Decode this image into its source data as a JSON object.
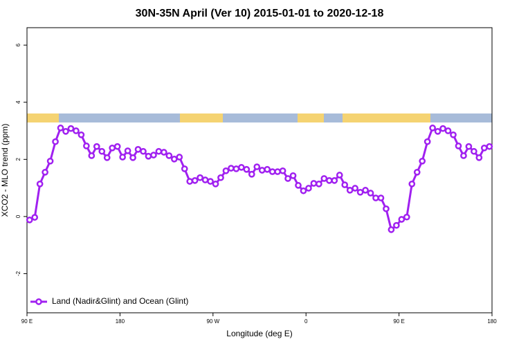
{
  "chart_data": {
    "type": "line",
    "title": "30N-35N April (Ver 10)   2015-01-01 to 2020-12-18",
    "x_label": "Longitude (deg E)",
    "y_label": "XCO2 - MLO trend (ppm)",
    "x": [
      92.5,
      97.5,
      102.5,
      107.5,
      112.5,
      117.5,
      122.5,
      127.5,
      132.5,
      137.5,
      142.5,
      147.5,
      152.5,
      157.5,
      162.5,
      167.5,
      172.5,
      177.5,
      182.5,
      187.5,
      192.5,
      197.5,
      202.5,
      207.5,
      212.5,
      217.5,
      222.5,
      227.5,
      232.5,
      237.5,
      242.5,
      247.5,
      252.5,
      257.5,
      262.5,
      267.5,
      272.5,
      277.5,
      282.5,
      287.5,
      292.5,
      297.5,
      302.5,
      307.5,
      312.5,
      317.5,
      322.5,
      327.5,
      332.5,
      337.5,
      342.5,
      347.5,
      352.5,
      357.5,
      362.5,
      367.5,
      372.5,
      377.5,
      382.5,
      387.5,
      392.5,
      397.5,
      402.5,
      407.5,
      412.5,
      417.5,
      422.5,
      427.5,
      432.5,
      437.5,
      442.5,
      447.5,
      452.5,
      457.5,
      462.5,
      467.5,
      472.5,
      477.5,
      482.5,
      487.5,
      492.5,
      497.5,
      502.5,
      507.5,
      512.5,
      517.5,
      522.5,
      527.5,
      532.5,
      537.5
    ],
    "series": [
      {
        "name": "Land (Nadir&Glint) and Ocean (Glint)",
        "color": "#a020f0",
        "values": [
          -0.12,
          -0.03,
          1.14,
          1.55,
          1.94,
          2.62,
          3.1,
          2.98,
          3.08,
          3.0,
          2.86,
          2.47,
          2.13,
          2.45,
          2.28,
          2.06,
          2.4,
          2.45,
          2.08,
          2.3,
          2.06,
          2.35,
          2.28,
          2.11,
          2.15,
          2.28,
          2.25,
          2.13,
          2.01,
          2.08,
          1.67,
          1.23,
          1.26,
          1.36,
          1.28,
          1.23,
          1.14,
          1.36,
          1.6,
          1.69,
          1.67,
          1.72,
          1.65,
          1.48,
          1.74,
          1.62,
          1.65,
          1.57,
          1.57,
          1.6,
          1.33,
          1.43,
          1.09,
          0.9,
          0.99,
          1.16,
          1.14,
          1.33,
          1.26,
          1.26,
          1.45,
          1.11,
          0.92,
          0.99,
          0.85,
          0.92,
          0.82,
          0.65,
          0.65,
          0.27,
          -0.46,
          -0.31,
          -0.1,
          -0.02,
          1.14,
          1.55,
          1.94,
          2.62,
          3.1,
          2.98,
          3.08,
          3.0,
          2.86,
          2.47,
          2.13,
          2.45,
          2.28,
          2.06,
          2.4,
          2.45
        ]
      }
    ],
    "xlim": [
      90,
      540
    ],
    "xticks": [
      {
        "value": 90,
        "label": "90 E"
      },
      {
        "value": 180,
        "label": "180"
      },
      {
        "value": 270,
        "label": "90 W"
      },
      {
        "value": 360,
        "label": "0"
      },
      {
        "value": 450,
        "label": "90 E"
      },
      {
        "value": 540,
        "label": "180"
      }
    ],
    "ylim": [
      -3.37,
      6.61
    ],
    "yticks": [
      -2,
      0,
      2,
      4,
      6
    ],
    "legend": "bottom-left"
  }
}
